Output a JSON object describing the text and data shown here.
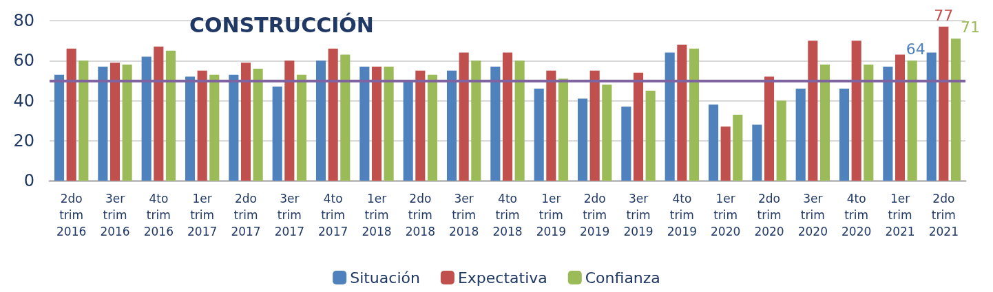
{
  "chart_data": {
    "type": "bar",
    "title": "CONSTRUCCIÓN",
    "categories": [
      "2do\ntrim\n2016",
      "3er\ntrim\n2016",
      "4to\ntrim\n2016",
      "1er\ntrim\n2017",
      "2do\ntrim\n2017",
      "3er\ntrim\n2017",
      "4to\ntrim\n2017",
      "1er\ntrim\n2018",
      "2do\ntrim\n2018",
      "3er\ntrim\n2018",
      "4to\ntrim\n2018",
      "1er\ntrim\n2019",
      "2do\ntrim\n2019",
      "3er\ntrim\n2019",
      "4to\ntrim\n2019",
      "1er\ntrim\n2020",
      "2do\ntrim\n2020",
      "3er\ntrim\n2020",
      "4to\ntrim\n2020",
      "1er\ntrim\n2021",
      "2do\ntrim\n2021"
    ],
    "series": [
      {
        "name": "Situación",
        "color": "#4f81bd",
        "values": [
          53,
          57,
          62,
          52,
          53,
          47,
          60,
          57,
          50,
          55,
          57,
          46,
          41,
          37,
          64,
          38,
          28,
          46,
          46,
          57,
          64
        ],
        "value_labels": [
          null,
          null,
          null,
          null,
          null,
          null,
          null,
          null,
          null,
          null,
          null,
          null,
          null,
          null,
          null,
          null,
          null,
          null,
          null,
          null,
          "64"
        ]
      },
      {
        "name": "Expectativa",
        "color": "#c0504d",
        "values": [
          66,
          59,
          67,
          55,
          59,
          60,
          66,
          57,
          55,
          64,
          64,
          55,
          55,
          54,
          68,
          27,
          52,
          70,
          70,
          63,
          77
        ],
        "value_labels": [
          null,
          null,
          null,
          null,
          null,
          null,
          null,
          null,
          null,
          null,
          null,
          null,
          null,
          null,
          null,
          null,
          null,
          null,
          null,
          null,
          "77"
        ]
      },
      {
        "name": "Confianza",
        "color": "#9bbb59",
        "values": [
          60,
          58,
          65,
          53,
          56,
          53,
          63,
          57,
          53,
          60,
          60,
          51,
          48,
          45,
          66,
          33,
          40,
          58,
          58,
          60,
          71
        ],
        "value_labels": [
          null,
          null,
          null,
          null,
          null,
          null,
          null,
          null,
          null,
          null,
          null,
          null,
          null,
          null,
          null,
          null,
          null,
          null,
          null,
          null,
          "71"
        ]
      }
    ],
    "ylim": [
      0,
      80
    ],
    "yticks": [
      0,
      20,
      40,
      60,
      80
    ],
    "grid": "y",
    "legend": "bottom",
    "ref_lines": [
      {
        "axis": "y",
        "value": 50,
        "color": "#8064a2"
      }
    ]
  }
}
